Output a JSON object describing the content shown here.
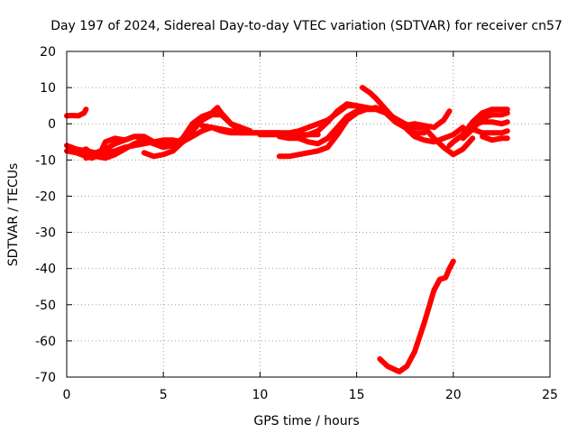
{
  "chart_data": {
    "type": "line",
    "title": "Day 197 of 2024, Sidereal Day-to-day VTEC variation (SDTVAR) for receiver cn57",
    "xlabel": "GPS time / hours",
    "ylabel": "SDTVAR / TECUs",
    "xlim": [
      0,
      25
    ],
    "ylim": [
      -70,
      20
    ],
    "xticks": [
      0,
      5,
      10,
      15,
      20,
      25
    ],
    "yticks": [
      -70,
      -60,
      -50,
      -40,
      -30,
      -20,
      -10,
      0,
      10,
      20
    ],
    "grid": true,
    "series_color": "#ff0000",
    "series": [
      {
        "name": "track-01",
        "x": [
          0.0,
          0.3,
          0.6,
          0.9,
          1.0
        ],
        "y": [
          2.2,
          2.3,
          2.2,
          3.0,
          4.0
        ]
      },
      {
        "name": "track-02",
        "x": [
          0.0,
          0.5,
          1.0,
          1.5,
          2.0,
          2.5,
          3.0,
          3.5,
          4.0,
          4.5
        ],
        "y": [
          -6.0,
          -7.0,
          -7.5,
          -8.0,
          -7.0,
          -5.5,
          -4.5,
          -3.5,
          -3.5,
          -5.0
        ]
      },
      {
        "name": "track-03",
        "x": [
          0.0,
          0.5,
          1.0,
          1.3,
          1.7,
          2.0,
          2.5,
          3.0,
          3.5,
          4.0,
          4.5,
          5.0,
          5.5
        ],
        "y": [
          -7.5,
          -8.0,
          -9.0,
          -9.5,
          -8.5,
          -5.0,
          -4.0,
          -4.5,
          -3.5,
          -4.0,
          -5.0,
          -5.0,
          -5.0
        ]
      },
      {
        "name": "track-04",
        "x": [
          0.5,
          1.0,
          1.5,
          2.0,
          2.5,
          3.0,
          3.5,
          4.0,
          4.5,
          5.0,
          5.5,
          6.0
        ],
        "y": [
          -8.0,
          -7.0,
          -9.0,
          -9.5,
          -8.5,
          -7.0,
          -5.5,
          -4.5,
          -5.5,
          -6.5,
          -6.0,
          -5.0
        ]
      },
      {
        "name": "track-05",
        "x": [
          1.0,
          1.5,
          2.0,
          2.5,
          3.0,
          3.5,
          4.0,
          4.5,
          5.0,
          5.5,
          6.0
        ],
        "y": [
          -9.5,
          -8.5,
          -8.0,
          -7.5,
          -6.5,
          -6.0,
          -5.5,
          -5.0,
          -4.5,
          -4.5,
          -5.0
        ]
      },
      {
        "name": "track-06",
        "x": [
          4.0,
          4.5,
          5.0,
          5.5,
          6.0,
          6.5,
          7.0,
          7.5,
          8.0,
          8.5,
          9.0
        ],
        "y": [
          -8.0,
          -9.0,
          -8.5,
          -7.5,
          -5.0,
          -2.0,
          1.0,
          2.5,
          2.5,
          0.0,
          -2.0
        ]
      },
      {
        "name": "track-07",
        "x": [
          5.0,
          5.5,
          6.0,
          6.5,
          7.0,
          7.5,
          7.8,
          8.0,
          8.5,
          9.0,
          9.5
        ],
        "y": [
          -6.0,
          -6.0,
          -4.0,
          0.0,
          2.0,
          3.0,
          4.5,
          3.0,
          0.0,
          -1.0,
          -2.0
        ]
      },
      {
        "name": "track-08",
        "x": [
          5.5,
          6.0,
          6.5,
          7.0,
          7.5,
          8.0,
          9.0,
          10.0,
          11.0,
          12.0,
          13.0
        ],
        "y": [
          -6.5,
          -5.0,
          -3.5,
          -2.0,
          -1.0,
          -1.5,
          -2.5,
          -2.5,
          -2.5,
          -3.0,
          -3.0
        ]
      },
      {
        "name": "track-09",
        "x": [
          7.0,
          7.5,
          8.0,
          8.5,
          9.0,
          9.5,
          10.0,
          10.5,
          11.0,
          11.5,
          12.0,
          12.5,
          13.0,
          13.5,
          14.0,
          14.5,
          15.0,
          15.5,
          16.0
        ],
        "y": [
          -0.5,
          -1.0,
          -2.0,
          -2.5,
          -2.5,
          -2.5,
          -2.5,
          -2.5,
          -2.5,
          -2.5,
          -2.0,
          -1.0,
          0.0,
          1.0,
          3.0,
          5.0,
          5.0,
          4.5,
          4.0
        ]
      },
      {
        "name": "track-10",
        "x": [
          10.0,
          11.0,
          12.0,
          12.5,
          13.0,
          13.5,
          14.0,
          14.5,
          15.0,
          15.5,
          16.0,
          16.5
        ],
        "y": [
          -3.0,
          -3.0,
          -3.5,
          -3.0,
          -2.0,
          0.5,
          3.5,
          5.5,
          5.0,
          4.5,
          4.0,
          4.0
        ]
      },
      {
        "name": "track-11",
        "x": [
          11.0,
          11.5,
          12.0,
          12.5,
          13.0,
          13.5,
          14.0,
          14.5,
          15.0,
          15.5,
          16.0,
          16.5,
          17.0,
          17.5,
          18.0,
          18.5
        ],
        "y": [
          -3.5,
          -4.0,
          -4.0,
          -5.0,
          -5.5,
          -4.0,
          -1.0,
          2.0,
          3.5,
          4.0,
          4.5,
          3.0,
          0.5,
          -1.0,
          -2.5,
          -2.5
        ]
      },
      {
        "name": "track-12",
        "x": [
          11.0,
          11.5,
          12.0,
          12.5,
          13.0,
          13.5,
          14.0,
          14.5,
          15.0,
          15.5,
          16.0,
          16.5,
          17.0,
          17.5,
          18.0,
          18.5,
          19.0,
          19.5,
          20.0,
          20.5,
          21.0
        ],
        "y": [
          -9.0,
          -9.0,
          -8.5,
          -8.0,
          -7.5,
          -6.5,
          -3.0,
          1.0,
          3.0,
          4.0,
          4.0,
          3.0,
          1.5,
          0.0,
          -1.0,
          -1.0,
          -4.0,
          -6.5,
          -8.5,
          -7.0,
          -4.0
        ]
      },
      {
        "name": "track-13",
        "x": [
          15.3,
          15.7,
          16.0,
          16.5,
          17.0,
          17.5,
          18.0,
          18.5,
          19.0,
          19.5,
          20.0,
          20.5
        ],
        "y": [
          10.0,
          8.5,
          7.0,
          4.0,
          1.0,
          -1.0,
          -3.5,
          -4.5,
          -5.0,
          -4.0,
          -3.0,
          -1.0
        ]
      },
      {
        "name": "track-14",
        "x": [
          16.5,
          17.0,
          17.5,
          18.0,
          18.5,
          19.0,
          19.5,
          19.8
        ],
        "y": [
          3.0,
          1.0,
          -0.5,
          0.0,
          -0.5,
          -1.0,
          1.0,
          3.5
        ]
      },
      {
        "name": "track-15",
        "x": [
          16.2,
          16.6,
          17.0,
          17.2,
          17.6,
          18.0,
          18.5,
          19.0,
          19.3,
          19.6,
          19.8,
          20.0
        ],
        "y": [
          -65.0,
          -67.0,
          -68.0,
          -68.5,
          -67.0,
          -63.0,
          -55.0,
          -46.0,
          -43.0,
          -42.5,
          -40.0,
          -38.0
        ]
      },
      {
        "name": "track-16",
        "x": [
          19.8,
          20.0,
          20.5,
          21.0,
          21.5,
          22.0,
          22.5,
          22.8
        ],
        "y": [
          -6.0,
          -5.0,
          -3.0,
          0.5,
          3.0,
          4.0,
          4.0,
          4.0
        ]
      },
      {
        "name": "track-17",
        "x": [
          20.5,
          21.0,
          21.5,
          22.0,
          22.5,
          22.8
        ],
        "y": [
          -4.0,
          -1.5,
          1.5,
          2.5,
          2.5,
          3.0
        ]
      },
      {
        "name": "track-18",
        "x": [
          21.0,
          21.5,
          22.0,
          22.5,
          22.8
        ],
        "y": [
          -0.5,
          0.5,
          0.5,
          0.0,
          0.5
        ]
      },
      {
        "name": "track-19",
        "x": [
          21.5,
          22.0,
          22.5,
          22.8
        ],
        "y": [
          -3.5,
          -4.5,
          -4.0,
          -4.0
        ]
      },
      {
        "name": "track-20",
        "x": [
          21.0,
          21.5,
          22.0,
          22.5,
          22.8
        ],
        "y": [
          -1.5,
          -2.5,
          -2.5,
          -2.5,
          -2.0
        ]
      }
    ]
  }
}
